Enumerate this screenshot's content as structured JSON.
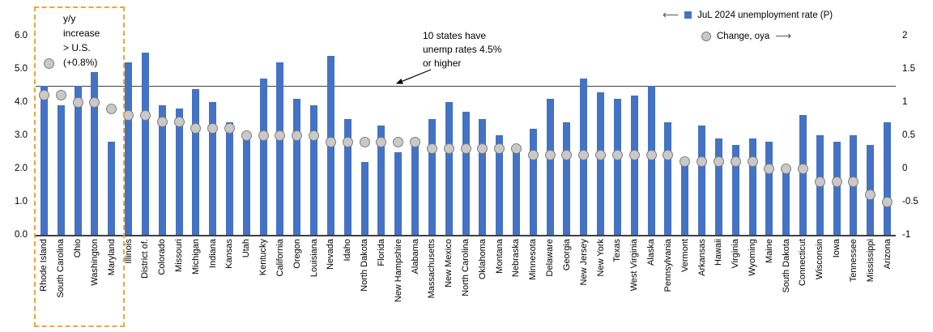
{
  "colors": {
    "bar": "#4472C4",
    "dot_fill": "#C9C9C9",
    "dot_border": "#7F7F7F",
    "reference_line": "#404040",
    "axis_line": "#404040",
    "highlight_box_border": "#F2A33C"
  },
  "legend": {
    "series1_label": "JuL 2024 unemployment rate (P)",
    "series2_label": "Change, oya",
    "left_arrow": "⟵",
    "right_arrow": "⟶"
  },
  "annotation": {
    "lines": [
      "10 states have",
      "unemp rates 4.5%",
      "or higher"
    ]
  },
  "highlight": {
    "lines": [
      "y/y",
      "increase",
      "> U.S.",
      "(+0.8%)"
    ]
  },
  "chart_data": {
    "type": "bar",
    "subtype": "bar+scatter combo, dual axis",
    "title": "",
    "xlabel": "",
    "ylabel_left": "JuL 2024 unemployment rate (P), %",
    "ylabel_right": "Change, oya, %-pts",
    "left_axis": {
      "min": 0,
      "max": 6,
      "ticks": [
        "6.0",
        "5.0",
        "4.0",
        "3.0",
        "2.0",
        "1.0",
        "0.0"
      ]
    },
    "right_axis": {
      "min": -1,
      "max": 2,
      "ticks": [
        "2",
        "1.5",
        "1",
        "0.5",
        "0",
        "-0.5",
        "-1"
      ]
    },
    "reference_line_left_value": 4.5,
    "grid": false,
    "legend_position": "top-right",
    "highlight_first_n": 5,
    "categories": [
      "Rhode Island",
      "South Carolina",
      "Ohio",
      "Washington",
      "Maryland",
      "Illinois",
      "District of.",
      "Colorado",
      "Missouri",
      "Michigan",
      "Indiana",
      "Kansas",
      "Utah",
      "Kentucky",
      "California",
      "Oregon",
      "Louisiana",
      "Nevada",
      "Idaho",
      "North Dakota",
      "Florida",
      "New Hampshire",
      "Alabama",
      "Massachusetts",
      "New Mexico",
      "North Carolina",
      "Oklahoma",
      "Montana",
      "Nebraska",
      "Minnesota",
      "Delaware",
      "Georgia",
      "New Jersey",
      "New York",
      "Texas",
      "West Virginia",
      "Alaska",
      "Pennsylvania",
      "Vermont",
      "Arkansas",
      "Hawaii",
      "Virginia",
      "Wyoming",
      "Maine",
      "South Dakota",
      "Connecticut",
      "Wisconsin",
      "Iowa",
      "Tennessee",
      "Mississippi",
      "Arizona"
    ],
    "series": [
      {
        "name": "JuL 2024 unemployment rate (P)",
        "type": "bar",
        "axis": "left",
        "color": "#4472C4",
        "values": [
          4.5,
          3.9,
          4.5,
          4.9,
          2.8,
          5.2,
          5.5,
          3.9,
          3.8,
          4.4,
          4.0,
          3.4,
          3.0,
          4.7,
          5.2,
          4.1,
          3.9,
          5.4,
          3.5,
          2.2,
          3.3,
          2.5,
          2.9,
          3.5,
          4.0,
          3.7,
          3.5,
          3.0,
          2.6,
          3.2,
          4.1,
          3.4,
          4.7,
          4.3,
          4.1,
          4.2,
          4.5,
          3.4,
          2.1,
          3.3,
          2.9,
          2.7,
          2.9,
          2.8,
          2.0,
          3.6,
          3.0,
          2.8,
          3.0,
          2.7,
          3.4
        ]
      },
      {
        "name": "Change, oya",
        "type": "scatter",
        "axis": "right",
        "color": "#C9C9C9",
        "values": [
          1.1,
          1.1,
          1.0,
          1.0,
          0.9,
          0.8,
          0.8,
          0.7,
          0.7,
          0.6,
          0.6,
          0.6,
          0.5,
          0.5,
          0.5,
          0.5,
          0.5,
          0.4,
          0.4,
          0.4,
          0.4,
          0.4,
          0.4,
          0.3,
          0.3,
          0.3,
          0.3,
          0.3,
          0.3,
          0.2,
          0.2,
          0.2,
          0.2,
          0.2,
          0.2,
          0.2,
          0.2,
          0.2,
          0.1,
          0.1,
          0.1,
          0.1,
          0.1,
          0.0,
          0.0,
          0.0,
          -0.2,
          -0.2,
          -0.2,
          -0.4,
          -0.5
        ]
      }
    ]
  }
}
